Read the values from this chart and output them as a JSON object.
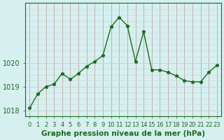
{
  "x": [
    0,
    1,
    2,
    3,
    4,
    5,
    6,
    7,
    8,
    9,
    10,
    11,
    12,
    13,
    14,
    15,
    16,
    17,
    18,
    19,
    20,
    21,
    22,
    23
  ],
  "y": [
    1018.1,
    1018.7,
    1019.0,
    1019.1,
    1019.55,
    1019.3,
    1019.55,
    1019.85,
    1020.05,
    1020.3,
    1021.5,
    1021.9,
    1021.55,
    1020.05,
    1021.3,
    1019.7,
    1019.7,
    1019.6,
    1019.45,
    1019.25,
    1019.2,
    1019.2,
    1019.6,
    1019.9
  ],
  "line_color": "#1a6b1a",
  "marker": "*",
  "marker_size": 3.5,
  "marker_color": "#1a6b1a",
  "bg_color": "#d6f0f0",
  "grid_color_v": "#c8a0a0",
  "grid_color_h": "#c0d8d8",
  "axis_color": "#1a6b1a",
  "xlabel": "Graphe pression niveau de la mer (hPa)",
  "xlabel_color": "#1a6b1a",
  "tick_color": "#1a6b1a",
  "ylim": [
    1017.75,
    1022.5
  ],
  "yticks": [
    1018,
    1019,
    1020
  ],
  "xtick_labels": [
    "0",
    "1",
    "2",
    "3",
    "4",
    "5",
    "6",
    "7",
    "8",
    "9",
    "10",
    "11",
    "12",
    "13",
    "14",
    "15",
    "16",
    "17",
    "18",
    "19",
    "20",
    "21",
    "22",
    "23"
  ],
  "font_size": 7,
  "linewidth": 1.0
}
